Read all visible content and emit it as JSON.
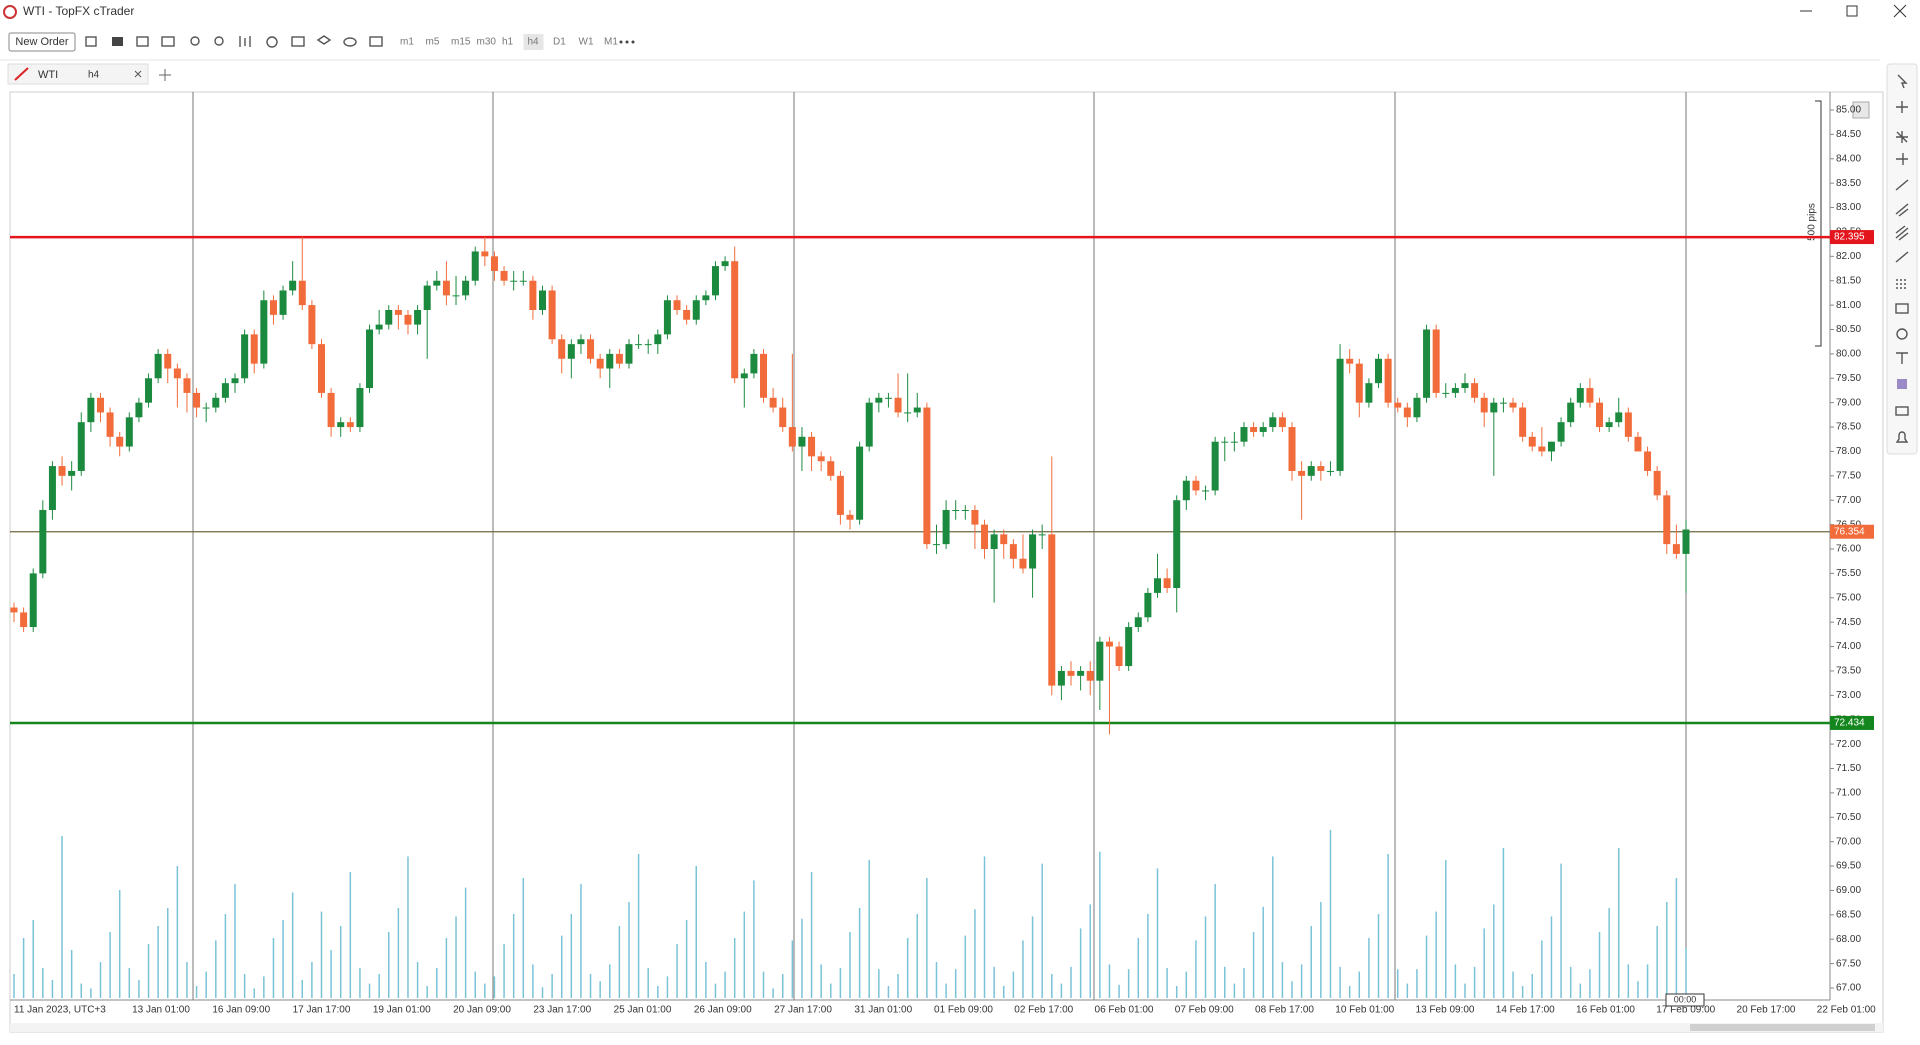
{
  "window": {
    "title": "WTI - TopFX cTrader"
  },
  "toolbar": {
    "new_order": "New Order",
    "timeframes": [
      "m1",
      "m5",
      "m15",
      "m30",
      "h1",
      "h4",
      "D1",
      "W1",
      "M1"
    ]
  },
  "tab": {
    "symbol": "WTI",
    "timeframe": "h4"
  },
  "chart_data": {
    "type": "candlestick",
    "x_labels": [
      "11 Jan 2023, UTC+3",
      "13 Jan 01:00",
      "16 Jan 09:00",
      "17 Jan 17:00",
      "19 Jan 01:00",
      "20 Jan 09:00",
      "23 Jan 17:00",
      "25 Jan 01:00",
      "26 Jan 09:00",
      "27 Jan 17:00",
      "31 Jan 01:00",
      "01 Feb 09:00",
      "02 Feb 17:00",
      "06 Feb 01:00",
      "07 Feb 09:00",
      "08 Feb 17:00",
      "10 Feb 01:00",
      "13 Feb 09:00",
      "14 Feb 17:00",
      "16 Feb 01:00",
      "17 Feb 09:00",
      "20 Feb 17:00",
      "22 Feb 01:00"
    ],
    "up_color": "#1b8a3f",
    "down_color": "#f26b3a",
    "volume_color": "#79c3d8",
    "candles": [
      [
        74.8,
        74.9,
        74.5,
        74.7
      ],
      [
        74.7,
        74.8,
        74.3,
        74.4
      ],
      [
        74.4,
        75.6,
        74.3,
        75.5
      ],
      [
        75.5,
        77.0,
        75.4,
        76.8
      ],
      [
        76.8,
        77.8,
        76.6,
        77.7
      ],
      [
        77.7,
        77.9,
        77.3,
        77.5
      ],
      [
        77.5,
        77.8,
        77.2,
        77.6
      ],
      [
        77.6,
        78.8,
        77.5,
        78.6
      ],
      [
        78.6,
        79.2,
        78.4,
        79.1
      ],
      [
        79.1,
        79.2,
        78.6,
        78.8
      ],
      [
        78.8,
        78.9,
        78.1,
        78.3
      ],
      [
        78.3,
        78.4,
        77.9,
        78.1
      ],
      [
        78.1,
        78.8,
        78.0,
        78.7
      ],
      [
        78.7,
        79.1,
        78.6,
        79.0
      ],
      [
        79.0,
        79.6,
        78.9,
        79.5
      ],
      [
        79.5,
        80.1,
        79.4,
        80.0
      ],
      [
        80.0,
        80.1,
        79.4,
        79.7
      ],
      [
        79.7,
        79.8,
        78.9,
        79.5
      ],
      [
        79.5,
        79.6,
        78.8,
        79.2
      ],
      [
        79.2,
        79.3,
        78.7,
        78.9
      ],
      [
        78.9,
        79.0,
        78.6,
        78.9
      ],
      [
        78.9,
        79.2,
        78.8,
        79.1
      ],
      [
        79.1,
        79.5,
        79.0,
        79.4
      ],
      [
        79.4,
        79.6,
        79.2,
        79.5
      ],
      [
        79.5,
        80.5,
        79.4,
        80.4
      ],
      [
        80.4,
        80.5,
        79.6,
        79.8
      ],
      [
        79.8,
        81.3,
        79.7,
        81.1
      ],
      [
        81.1,
        81.2,
        80.6,
        80.8
      ],
      [
        80.8,
        81.4,
        80.7,
        81.3
      ],
      [
        81.3,
        81.9,
        81.2,
        81.5
      ],
      [
        81.5,
        82.4,
        80.9,
        81.0
      ],
      [
        81.0,
        81.1,
        80.1,
        80.2
      ],
      [
        80.2,
        80.3,
        79.1,
        79.2
      ],
      [
        79.2,
        79.3,
        78.3,
        78.5
      ],
      [
        78.5,
        78.7,
        78.3,
        78.6
      ],
      [
        78.6,
        78.7,
        78.4,
        78.5
      ],
      [
        78.5,
        79.4,
        78.4,
        79.3
      ],
      [
        79.3,
        80.6,
        79.2,
        80.5
      ],
      [
        80.5,
        80.9,
        80.4,
        80.6
      ],
      [
        80.6,
        81.0,
        80.5,
        80.9
      ],
      [
        80.9,
        81.0,
        80.5,
        80.8
      ],
      [
        80.8,
        80.9,
        80.4,
        80.6
      ],
      [
        80.6,
        81.0,
        80.4,
        80.9
      ],
      [
        80.9,
        81.5,
        79.9,
        81.4
      ],
      [
        81.4,
        81.7,
        81.3,
        81.5
      ],
      [
        81.5,
        81.9,
        81.0,
        81.2
      ],
      [
        81.2,
        81.6,
        81.0,
        81.2
      ],
      [
        81.2,
        81.6,
        81.1,
        81.5
      ],
      [
        81.5,
        82.2,
        81.4,
        82.1
      ],
      [
        82.1,
        82.4,
        81.8,
        82.0
      ],
      [
        82.0,
        82.1,
        81.5,
        81.7
      ],
      [
        81.7,
        81.8,
        81.4,
        81.5
      ],
      [
        81.5,
        81.7,
        81.3,
        81.5
      ],
      [
        81.5,
        81.7,
        81.4,
        81.5
      ],
      [
        81.5,
        81.6,
        80.7,
        80.9
      ],
      [
        80.9,
        81.4,
        80.8,
        81.3
      ],
      [
        81.3,
        81.4,
        80.2,
        80.3
      ],
      [
        80.3,
        80.4,
        79.6,
        79.9
      ],
      [
        79.9,
        80.3,
        79.5,
        80.2
      ],
      [
        80.2,
        80.4,
        80.0,
        80.3
      ],
      [
        80.3,
        80.4,
        79.8,
        79.9
      ],
      [
        79.9,
        80.0,
        79.5,
        79.7
      ],
      [
        79.7,
        80.1,
        79.3,
        80.0
      ],
      [
        80.0,
        80.1,
        79.7,
        79.8
      ],
      [
        79.8,
        80.3,
        79.7,
        80.2
      ],
      [
        80.2,
        80.4,
        80.1,
        80.2
      ],
      [
        80.2,
        80.3,
        80.0,
        80.2
      ],
      [
        80.2,
        80.5,
        80.0,
        80.4
      ],
      [
        80.4,
        81.2,
        80.3,
        81.1
      ],
      [
        81.1,
        81.2,
        80.8,
        80.9
      ],
      [
        80.9,
        81.0,
        80.6,
        80.7
      ],
      [
        80.7,
        81.2,
        80.6,
        81.1
      ],
      [
        81.1,
        81.3,
        81.0,
        81.2
      ],
      [
        81.2,
        81.9,
        81.1,
        81.8
      ],
      [
        81.8,
        82.0,
        81.7,
        81.9
      ],
      [
        81.9,
        82.2,
        79.4,
        79.5
      ],
      [
        79.5,
        79.7,
        78.9,
        79.6
      ],
      [
        79.6,
        80.1,
        79.5,
        80.0
      ],
      [
        80.0,
        80.1,
        79.0,
        79.1
      ],
      [
        79.1,
        79.3,
        78.8,
        78.9
      ],
      [
        78.9,
        79.1,
        78.4,
        78.5
      ],
      [
        78.5,
        80.0,
        78.0,
        78.1
      ],
      [
        78.1,
        78.5,
        77.6,
        78.3
      ],
      [
        78.3,
        78.4,
        77.6,
        77.9
      ],
      [
        77.9,
        78.0,
        77.6,
        77.8
      ],
      [
        77.8,
        77.9,
        77.4,
        77.5
      ],
      [
        77.5,
        77.6,
        76.5,
        76.7
      ],
      [
        76.7,
        76.8,
        76.4,
        76.6
      ],
      [
        76.6,
        78.2,
        76.5,
        78.1
      ],
      [
        78.1,
        79.1,
        78.0,
        79.0
      ],
      [
        79.0,
        79.2,
        78.8,
        79.1
      ],
      [
        79.1,
        79.2,
        78.9,
        79.1
      ],
      [
        79.1,
        79.6,
        78.7,
        78.8
      ],
      [
        78.8,
        79.6,
        78.6,
        78.8
      ],
      [
        78.8,
        79.2,
        78.7,
        78.9
      ],
      [
        78.9,
        79.0,
        76.0,
        76.1
      ],
      [
        76.1,
        76.5,
        75.9,
        76.1
      ],
      [
        76.1,
        77.0,
        76.0,
        76.8
      ],
      [
        76.8,
        77.0,
        76.6,
        76.8
      ],
      [
        76.8,
        76.9,
        76.6,
        76.8
      ],
      [
        76.8,
        76.9,
        76.0,
        76.5
      ],
      [
        76.5,
        76.6,
        75.8,
        76.0
      ],
      [
        76.0,
        76.4,
        74.9,
        76.3
      ],
      [
        76.3,
        76.4,
        75.8,
        76.1
      ],
      [
        76.1,
        76.2,
        75.6,
        75.8
      ],
      [
        75.8,
        76.3,
        75.5,
        75.6
      ],
      [
        75.6,
        76.4,
        75.0,
        76.3
      ],
      [
        76.3,
        76.5,
        76.0,
        76.3
      ],
      [
        76.3,
        77.9,
        73.0,
        73.2
      ],
      [
        73.2,
        73.6,
        72.9,
        73.5
      ],
      [
        73.5,
        73.7,
        73.2,
        73.4
      ],
      [
        73.4,
        73.6,
        73.1,
        73.5
      ],
      [
        73.5,
        73.7,
        73.0,
        73.3
      ],
      [
        73.3,
        74.2,
        72.7,
        74.1
      ],
      [
        74.1,
        74.2,
        72.2,
        74.0
      ],
      [
        74.0,
        74.1,
        73.5,
        73.6
      ],
      [
        73.6,
        74.5,
        73.5,
        74.4
      ],
      [
        74.4,
        74.7,
        74.3,
        74.6
      ],
      [
        74.6,
        75.2,
        74.5,
        75.1
      ],
      [
        75.1,
        75.9,
        75.0,
        75.4
      ],
      [
        75.4,
        75.6,
        75.1,
        75.2
      ],
      [
        75.2,
        77.1,
        74.7,
        77.0
      ],
      [
        77.0,
        77.5,
        76.8,
        77.4
      ],
      [
        77.4,
        77.5,
        77.1,
        77.2
      ],
      [
        77.2,
        77.3,
        77.0,
        77.2
      ],
      [
        77.2,
        78.3,
        77.1,
        78.2
      ],
      [
        78.2,
        78.3,
        77.8,
        78.2
      ],
      [
        78.2,
        78.4,
        78.0,
        78.2
      ],
      [
        78.2,
        78.6,
        78.1,
        78.5
      ],
      [
        78.5,
        78.6,
        78.3,
        78.4
      ],
      [
        78.4,
        78.6,
        78.3,
        78.5
      ],
      [
        78.5,
        78.8,
        78.4,
        78.7
      ],
      [
        78.7,
        78.8,
        78.4,
        78.5
      ],
      [
        78.5,
        78.6,
        77.4,
        77.6
      ],
      [
        77.6,
        77.8,
        76.6,
        77.5
      ],
      [
        77.5,
        77.8,
        77.4,
        77.7
      ],
      [
        77.7,
        77.8,
        77.4,
        77.6
      ],
      [
        77.6,
        77.8,
        77.5,
        77.6
      ],
      [
        77.6,
        80.2,
        77.5,
        79.9
      ],
      [
        79.9,
        80.1,
        79.6,
        79.8
      ],
      [
        79.8,
        79.9,
        78.7,
        79.0
      ],
      [
        79.0,
        79.5,
        78.9,
        79.4
      ],
      [
        79.4,
        80.0,
        79.3,
        79.9
      ],
      [
        79.9,
        80.0,
        78.9,
        79.0
      ],
      [
        79.0,
        79.1,
        78.8,
        78.9
      ],
      [
        78.9,
        79.0,
        78.5,
        78.7
      ],
      [
        78.7,
        79.2,
        78.6,
        79.1
      ],
      [
        79.1,
        80.6,
        79.0,
        80.5
      ],
      [
        80.5,
        80.6,
        79.1,
        79.2
      ],
      [
        79.2,
        79.4,
        79.1,
        79.2
      ],
      [
        79.2,
        79.4,
        79.1,
        79.3
      ],
      [
        79.3,
        79.6,
        79.2,
        79.4
      ],
      [
        79.4,
        79.5,
        79.0,
        79.1
      ],
      [
        79.1,
        79.2,
        78.5,
        78.8
      ],
      [
        78.8,
        79.1,
        77.5,
        79.0
      ],
      [
        79.0,
        79.1,
        78.8,
        79.0
      ],
      [
        79.0,
        79.1,
        78.8,
        78.9
      ],
      [
        78.9,
        79.0,
        78.2,
        78.3
      ],
      [
        78.3,
        78.4,
        78.0,
        78.1
      ],
      [
        78.1,
        78.5,
        77.9,
        78.0
      ],
      [
        78.0,
        78.2,
        77.8,
        78.2
      ],
      [
        78.2,
        78.7,
        78.1,
        78.6
      ],
      [
        78.6,
        79.1,
        78.5,
        79.0
      ],
      [
        79.0,
        79.4,
        78.9,
        79.3
      ],
      [
        79.3,
        79.5,
        78.9,
        79.0
      ],
      [
        79.0,
        79.1,
        78.4,
        78.5
      ],
      [
        78.5,
        78.7,
        78.4,
        78.6
      ],
      [
        78.6,
        79.1,
        78.5,
        78.8
      ],
      [
        78.8,
        78.9,
        78.2,
        78.3
      ],
      [
        78.3,
        78.4,
        78.0,
        78.0
      ],
      [
        78.0,
        78.1,
        77.5,
        77.6
      ],
      [
        77.6,
        77.7,
        77.0,
        77.1
      ],
      [
        77.1,
        77.2,
        75.9,
        76.1
      ],
      [
        76.1,
        76.5,
        75.8,
        75.9
      ],
      [
        75.9,
        76.6,
        75.1,
        76.4
      ]
    ],
    "volumes": [
      20,
      50,
      65,
      25,
      15,
      135,
      40,
      12,
      8,
      30,
      55,
      90,
      25,
      15,
      45,
      60,
      75,
      110,
      30,
      10,
      22,
      48,
      70,
      95,
      20,
      8,
      18,
      50,
      65,
      88,
      15,
      30,
      72,
      40,
      60,
      105,
      25,
      12,
      20,
      55,
      75,
      118,
      30,
      10,
      25,
      50,
      68,
      92,
      22,
      12,
      18,
      45,
      70,
      100,
      28,
      9,
      20,
      52,
      70,
      95,
      20,
      14,
      28,
      60,
      80,
      120,
      25,
      10,
      18,
      45,
      65,
      110,
      30,
      12,
      22,
      50,
      72,
      98,
      22,
      8,
      20,
      48,
      66,
      105,
      28,
      12,
      25,
      55,
      75,
      115,
      24,
      10,
      20,
      50,
      70,
      100,
      30,
      12,
      24,
      52,
      74,
      118,
      26,
      10,
      22,
      48,
      68,
      112,
      20,
      12,
      26,
      58,
      78,
      122,
      28,
      11,
      24,
      50,
      70,
      108,
      25,
      10,
      22,
      48,
      68,
      95,
      26,
      12,
      25,
      55,
      76,
      118,
      30,
      14,
      28,
      60,
      80,
      140,
      26,
      10,
      22,
      50,
      70,
      120,
      24,
      12,
      24,
      52,
      72,
      115,
      28,
      12,
      26,
      58,
      78,
      125,
      22,
      10,
      20,
      48,
      68,
      112,
      26,
      12,
      24,
      55,
      75,
      125,
      28,
      14,
      28,
      60,
      80,
      100,
      42
    ],
    "ylim": [
      67,
      85
    ],
    "yticks": [
      {
        "value": 67,
        "label": "67.00"
      },
      {
        "value": 67.5,
        "label": "67.50"
      },
      {
        "value": 68,
        "label": "68.00"
      },
      {
        "value": 68.5,
        "label": "68.50"
      },
      {
        "value": 69,
        "label": "69.00"
      },
      {
        "value": 69.5,
        "label": "69.50"
      },
      {
        "value": 70,
        "label": "70.00"
      },
      {
        "value": 70.5,
        "label": "70.50"
      },
      {
        "value": 71,
        "label": "71.00"
      },
      {
        "value": 71.5,
        "label": "71.50"
      },
      {
        "value": 72,
        "label": "72.00"
      },
      {
        "value": 72.5,
        "label": "72.50"
      },
      {
        "value": 73,
        "label": "73.00"
      },
      {
        "value": 73.5,
        "label": "73.50"
      },
      {
        "value": 74,
        "label": "74.00"
      },
      {
        "value": 74.5,
        "label": "74.50"
      },
      {
        "value": 75,
        "label": "75.00"
      },
      {
        "value": 75.5,
        "label": "75.50"
      },
      {
        "value": 76,
        "label": "76.00"
      },
      {
        "value": 76.5,
        "label": "76.50"
      },
      {
        "value": 77,
        "label": "77.00"
      },
      {
        "value": 77.5,
        "label": "77.50"
      },
      {
        "value": 78,
        "label": "78.00"
      },
      {
        "value": 78.5,
        "label": "78.50"
      },
      {
        "value": 79,
        "label": "79.00"
      },
      {
        "value": 79.5,
        "label": "79.50"
      },
      {
        "value": 80,
        "label": "80.00"
      },
      {
        "value": 80.5,
        "label": "80.50"
      },
      {
        "value": 81,
        "label": "81.00"
      },
      {
        "value": 81.5,
        "label": "81.50"
      },
      {
        "value": 82,
        "label": "82.00"
      },
      {
        "value": 82.5,
        "label": "82.50"
      },
      {
        "value": 83,
        "label": "83.00"
      },
      {
        "value": 83.5,
        "label": "83.50"
      },
      {
        "value": 84,
        "label": "84.00"
      },
      {
        "value": 84.5,
        "label": "84.50"
      },
      {
        "value": 85,
        "label": "85.00"
      }
    ],
    "levels": [
      {
        "value": 82.395,
        "color": "#e3141b"
      },
      {
        "value": 76.354,
        "color": "#f26b3a",
        "line_color": "#6e6a3c"
      },
      {
        "value": 72.434,
        "color": "#14861e"
      }
    ],
    "ruler_label": "500 pips",
    "cursor_time": "00:00"
  }
}
